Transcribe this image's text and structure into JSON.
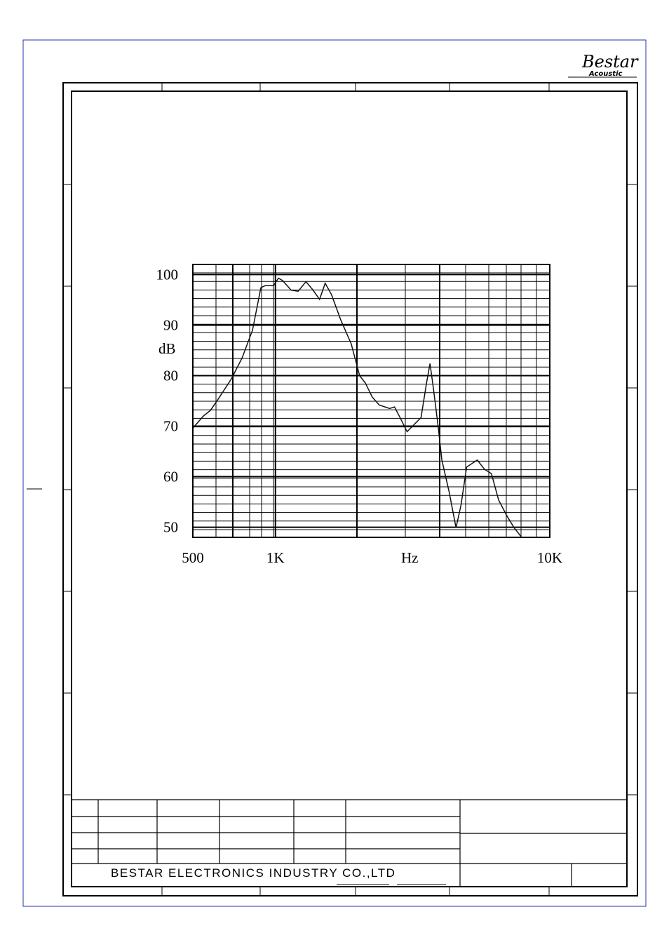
{
  "document": {
    "logo": "Bestar",
    "logo_sub": "Acoustic",
    "company": "BESTAR ELECTRONICS INDUSTRY CO.,LTD"
  },
  "chart_data": {
    "type": "line",
    "x_label": "Hz",
    "y_label": "dB",
    "log_x": true,
    "color": "#111111",
    "xlim": [
      500,
      10000
    ],
    "xticks": [
      500,
      {
        "value": 1000,
        "label": "1K"
      },
      {
        "value": 10000,
        "label": "10K"
      }
    ],
    "ylim": [
      48,
      102
    ],
    "yticks": [
      50,
      60,
      70,
      80,
      90,
      100
    ],
    "series": [
      {
        "x": [
          500,
          546,
          579,
          614,
          690,
          756,
          825,
          885,
          917,
          984,
          1026,
          1063,
          1141,
          1210,
          1292,
          1363,
          1448,
          1518,
          1602,
          1728,
          1889,
          2027,
          2124,
          2251,
          2388,
          2607,
          2717,
          2846,
          3018,
          3200,
          3394,
          3556,
          3660,
          3770,
          3926,
          4043,
          4293,
          4553,
          4745,
          4975,
          5440,
          5775,
          6130,
          6506,
          6983,
          7413,
          7870
        ],
        "values": [
          69.6,
          72.0,
          73.1,
          75.1,
          79.3,
          83.5,
          89.0,
          97.4,
          97.8,
          97.8,
          99.3,
          98.8,
          96.9,
          96.7,
          98.6,
          97.1,
          95.1,
          98.3,
          96.0,
          91.1,
          86.3,
          80.0,
          78.6,
          75.8,
          74.2,
          73.5,
          73.8,
          71.7,
          68.9,
          70.3,
          71.7,
          78.6,
          82.4,
          77.2,
          69.6,
          63.3,
          57.1,
          49.9,
          54.3,
          61.9,
          63.3,
          61.5,
          60.6,
          55.4,
          52.2,
          49.9,
          48.1
        ]
      }
    ]
  }
}
